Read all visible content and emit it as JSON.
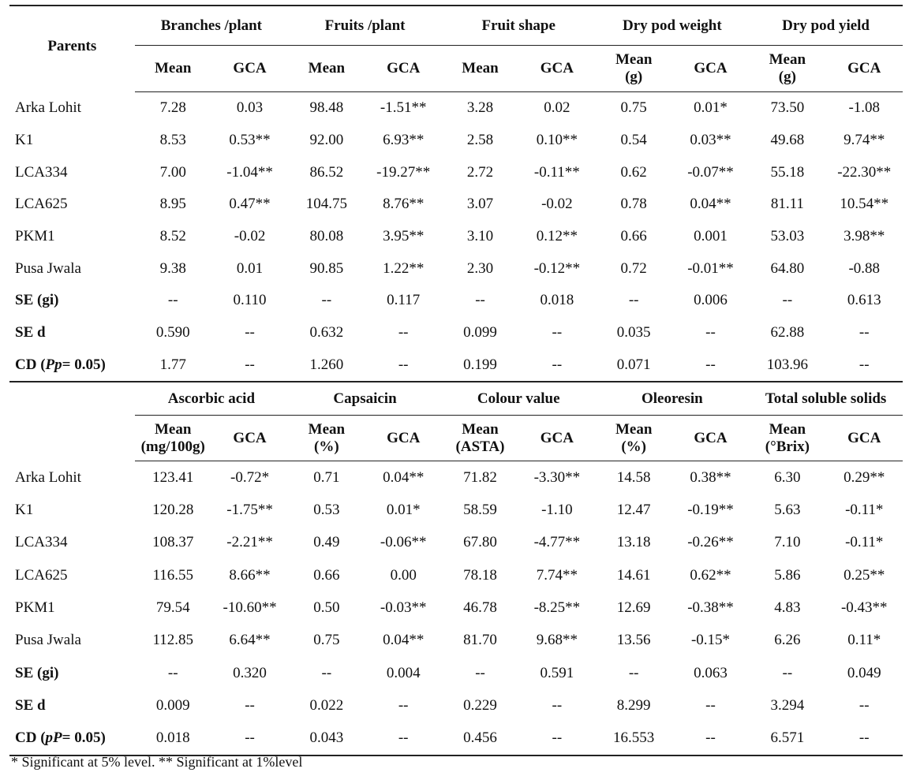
{
  "section1": {
    "corner": "Parents",
    "traits": [
      "Branches /plant",
      "Fruits /plant",
      "Fruit shape",
      "Dry pod weight",
      "Dry pod yield"
    ],
    "sub": [
      {
        "mean": "Mean",
        "gca": "GCA"
      },
      {
        "mean": "Mean",
        "gca": "GCA"
      },
      {
        "mean": "Mean",
        "gca": "GCA"
      },
      {
        "mean": "Mean",
        "mean2": "(g)",
        "gca": "GCA"
      },
      {
        "mean": "Mean",
        "mean2": "(g)",
        "gca": "GCA"
      }
    ],
    "rows": [
      {
        "name": "Arka Lohit",
        "v": [
          "7.28",
          "0.03",
          "98.48",
          "-1.51**",
          "3.28",
          "0.02",
          "0.75",
          "0.01*",
          "73.50",
          "-1.08"
        ]
      },
      {
        "name": "K1",
        "v": [
          "8.53",
          "0.53**",
          "92.00",
          "6.93**",
          "2.58",
          "0.10**",
          "0.54",
          "0.03**",
          "49.68",
          "9.74**"
        ]
      },
      {
        "name": "LCA334",
        "v": [
          "7.00",
          "-1.04**",
          "86.52",
          "-19.27**",
          "2.72",
          "-0.11**",
          "0.62",
          "-0.07**",
          "55.18",
          "-22.30**"
        ]
      },
      {
        "name": "LCA625",
        "v": [
          "8.95",
          "0.47**",
          "104.75",
          "8.76**",
          "3.07",
          "-0.02",
          "0.78",
          "0.04**",
          "81.11",
          "10.54**"
        ]
      },
      {
        "name": "PKM1",
        "v": [
          "8.52",
          "-0.02",
          "80.08",
          "3.95**",
          "3.10",
          "0.12**",
          "0.66",
          "0.001",
          "53.03",
          "3.98**"
        ]
      },
      {
        "name": "Pusa Jwala",
        "v": [
          "9.38",
          "0.01",
          "90.85",
          "1.22**",
          "2.30",
          "-0.12**",
          "0.72",
          "-0.01**",
          "64.80",
          "-0.88"
        ]
      }
    ],
    "stats": [
      {
        "name": "SE (gi)",
        "v": [
          "--",
          "0.110",
          "--",
          "0.117",
          "--",
          "0.018",
          "--",
          "0.006",
          "--",
          "0.613"
        ]
      },
      {
        "name": "SE d",
        "v": [
          "0.590",
          "--",
          "0.632",
          "--",
          "0.099",
          "--",
          "0.035",
          "--",
          "62.88",
          "--"
        ]
      }
    ],
    "cd": {
      "pre": "CD (",
      "it": "Pp",
      "post": "= 0.05)",
      "v": [
        "1.77",
        "--",
        "1.260",
        "--",
        "0.199",
        "--",
        "0.071",
        "--",
        "103.96",
        "--"
      ]
    }
  },
  "section2": {
    "traits": [
      "Ascorbic acid",
      "Capsaicin",
      "Colour value",
      "Oleoresin",
      "Total soluble solids"
    ],
    "sub": [
      {
        "mean": "Mean",
        "mean2": "(mg/100g)",
        "gca": "GCA"
      },
      {
        "mean": "Mean",
        "mean2": "(%)",
        "gca": "GCA"
      },
      {
        "mean": "Mean",
        "mean2": "(ASTA)",
        "gca": "GCA"
      },
      {
        "mean": "Mean",
        "mean2": "(%)",
        "gca": "GCA"
      },
      {
        "mean": "Mean",
        "mean2": "(°Brix)",
        "gca": "GCA"
      }
    ],
    "rows": [
      {
        "name": "Arka Lohit",
        "v": [
          "123.41",
          "-0.72*",
          "0.71",
          "0.04**",
          "71.82",
          "-3.30**",
          "14.58",
          "0.38**",
          "6.30",
          "0.29**"
        ]
      },
      {
        "name": "K1",
        "v": [
          "120.28",
          "-1.75**",
          "0.53",
          "0.01*",
          "58.59",
          "-1.10",
          "12.47",
          "-0.19**",
          "5.63",
          "-0.11*"
        ]
      },
      {
        "name": "LCA334",
        "v": [
          "108.37",
          "-2.21**",
          "0.49",
          "-0.06**",
          "67.80",
          "-4.77**",
          "13.18",
          "-0.26**",
          "7.10",
          "-0.11*"
        ]
      },
      {
        "name": "LCA625",
        "v": [
          "116.55",
          "8.66**",
          "0.66",
          "0.00",
          "78.18",
          "7.74**",
          "14.61",
          "0.62**",
          "5.86",
          "0.25**"
        ]
      },
      {
        "name": "PKM1",
        "v": [
          "79.54",
          "-10.60**",
          "0.50",
          "-0.03**",
          "46.78",
          "-8.25**",
          "12.69",
          "-0.38**",
          "4.83",
          "-0.43**"
        ]
      },
      {
        "name": "Pusa Jwala",
        "v": [
          "112.85",
          "6.64**",
          "0.75",
          "0.04**",
          "81.70",
          "9.68**",
          "13.56",
          "-0.15*",
          "6.26",
          "0.11*"
        ]
      }
    ],
    "stats": [
      {
        "name": "SE (gi)",
        "v": [
          "--",
          "0.320",
          "--",
          "0.004",
          "--",
          "0.591",
          "--",
          "0.063",
          "--",
          "0.049"
        ]
      },
      {
        "name": "SE d",
        "v": [
          "0.009",
          "--",
          "0.022",
          "--",
          "0.229",
          "--",
          "8.299",
          "--",
          "3.294",
          "--"
        ]
      }
    ],
    "cd": {
      "pre": "CD (",
      "it": "pP",
      "post": "= 0.05)",
      "v": [
        "0.018",
        "--",
        "0.043",
        "--",
        "0.456",
        "--",
        "16.553",
        "--",
        "6.571",
        "--"
      ]
    }
  },
  "footnote": "* Significant at 5% level. ** Significant at 1%level"
}
